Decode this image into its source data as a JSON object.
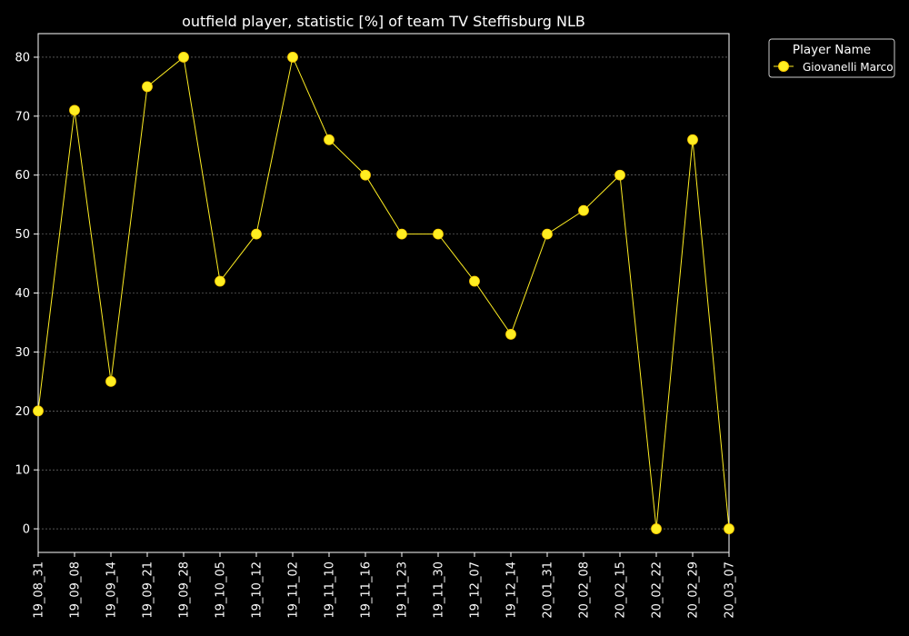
{
  "chart_data": {
    "type": "line",
    "title": "outfield player, statistic [%] of team TV Steffisburg NLB",
    "xlabel": "",
    "ylabel": "",
    "categories": [
      "19_08_31",
      "19_09_08",
      "19_09_14",
      "19_09_21",
      "19_09_28",
      "19_10_05",
      "19_10_12",
      "19_11_02",
      "19_11_10",
      "19_11_16",
      "19_11_23",
      "19_11_30",
      "19_12_07",
      "19_12_14",
      "20_01_31",
      "20_02_08",
      "20_02_15",
      "20_02_22",
      "20_02_29",
      "20_03_07"
    ],
    "series": [
      {
        "name": "Giovanelli Marco",
        "color": "#ffee22",
        "values": [
          20,
          71,
          25,
          75,
          80,
          42,
          50,
          80,
          66,
          60,
          50,
          50,
          42,
          33,
          50,
          54,
          60,
          0,
          66,
          0
        ]
      }
    ],
    "ylim": [
      -4,
      84
    ],
    "yticks": [
      0,
      10,
      20,
      30,
      40,
      50,
      60,
      70,
      80
    ],
    "grid": true,
    "legend": {
      "title": "Player Name",
      "placement": "outside-top-right"
    },
    "background": "#000000",
    "axis_color": "#ffffff",
    "grid_color": "#888888"
  }
}
